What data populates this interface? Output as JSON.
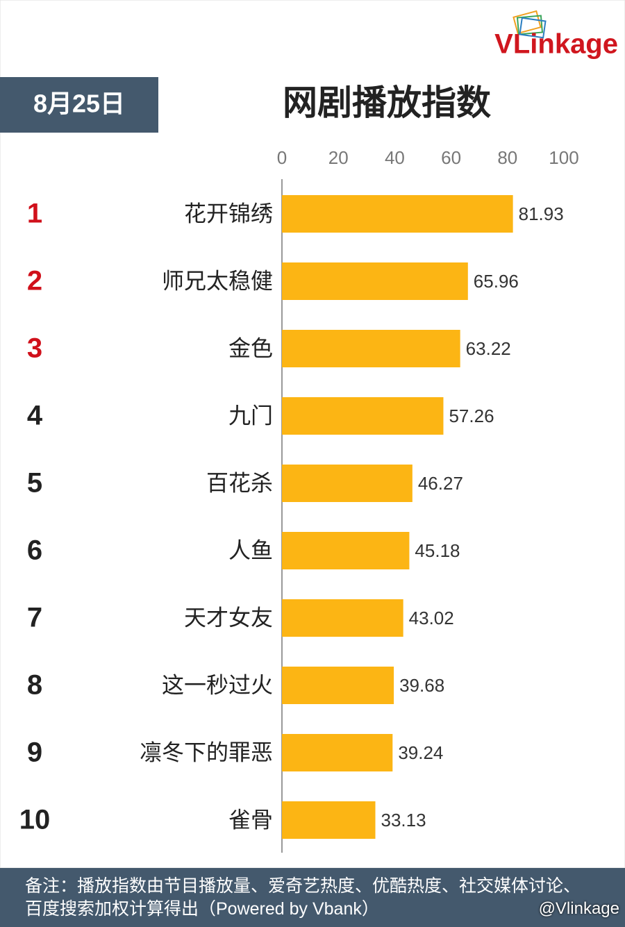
{
  "brand": "VLinkage",
  "date_label": "8月25日",
  "chart_data": {
    "type": "bar",
    "orientation": "horizontal",
    "title": "网剧播放指数",
    "ranks": [
      "1",
      "2",
      "3",
      "4",
      "5",
      "6",
      "7",
      "8",
      "9",
      "10"
    ],
    "categories": [
      "花开锦绣",
      "师兄太稳健",
      "金色",
      "九门",
      "百花杀",
      "人鱼",
      "天才女友",
      "这一秒过火",
      "凛冬下的罪恶",
      "雀骨"
    ],
    "values": [
      81.93,
      65.96,
      63.22,
      57.26,
      46.27,
      45.18,
      43.02,
      39.68,
      39.24,
      33.13
    ],
    "color": "#fcb514",
    "xlim": [
      0,
      100
    ],
    "xticks": [
      0,
      20,
      40,
      60,
      80,
      100
    ]
  },
  "note": "备注：播放指数由节目播放量、爱奇艺热度、优酷热度、社交媒体讨论、百度搜索加权计算得出（Powered by Vbank）",
  "watermark": "@Vlinkage"
}
